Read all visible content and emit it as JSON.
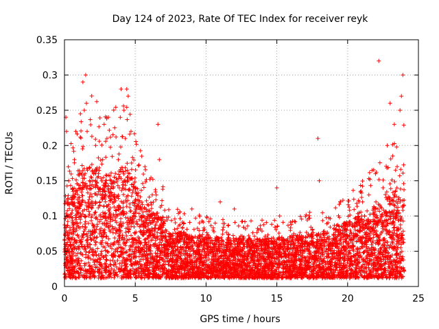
{
  "chart_data": {
    "type": "scatter",
    "title": "Day 124 of 2023, Rate Of TEC Index for receiver reyk",
    "xlabel": "GPS time / hours",
    "ylabel": "ROTI / TECUs",
    "xlim": [
      0,
      25
    ],
    "ylim": [
      0,
      0.35
    ],
    "xticks": [
      0,
      5,
      10,
      15,
      20,
      25
    ],
    "yticks": [
      0,
      0.05,
      0.1,
      0.15,
      0.2,
      0.25,
      0.3,
      0.35
    ],
    "xtick_labels": [
      "0",
      "5",
      "10",
      "15",
      "20",
      "25"
    ],
    "ytick_labels": [
      "0",
      "0.05",
      "0.1",
      "0.15",
      "0.2",
      "0.25",
      "0.3",
      "0.35"
    ],
    "grid": true,
    "marker": "+",
    "color": "#ff0000",
    "series": [
      {
        "x": [
          0.05,
          0.1,
          0.15,
          0.2,
          0.25,
          0.3,
          0.35,
          0.4,
          0.5,
          0.6,
          0.7,
          0.8,
          0.9,
          1.0,
          1.1,
          1.2,
          1.3,
          1.4,
          1.5,
          1.55,
          1.6,
          1.7,
          1.8,
          1.9,
          2.0,
          2.1,
          2.2,
          2.3,
          2.4,
          2.5,
          2.6,
          2.7,
          2.8,
          2.9,
          3.0,
          3.1,
          3.2,
          3.3,
          3.4,
          3.5,
          3.6,
          3.7,
          3.8,
          3.9,
          4.0,
          4.1,
          4.2,
          4.3,
          4.4,
          4.5,
          4.6,
          4.7,
          4.8,
          4.9,
          5.0,
          5.2,
          5.4,
          5.6,
          5.8,
          6.0,
          6.2,
          6.4,
          6.6,
          6.7,
          6.8,
          7.0,
          7.5,
          8.0,
          8.5,
          9.0,
          9.5,
          10.0,
          10.5,
          11.0,
          11.5,
          12.0,
          12.5,
          13.0,
          13.5,
          14.0,
          14.5,
          15.0,
          15.2,
          15.5,
          16.0,
          16.5,
          17.0,
          17.5,
          17.9,
          18.0,
          18.5,
          19.0,
          19.5,
          20.0,
          20.5,
          21.0,
          21.5,
          22.0,
          22.2,
          22.5,
          22.8,
          23.0,
          23.3,
          23.5,
          23.7,
          23.8,
          23.9
        ],
        "y": [
          0.06,
          0.24,
          0.22,
          0.1,
          0.07,
          0.15,
          0.05,
          0.08,
          0.12,
          0.06,
          0.18,
          0.22,
          0.09,
          0.07,
          0.14,
          0.06,
          0.29,
          0.25,
          0.3,
          0.26,
          0.22,
          0.1,
          0.06,
          0.12,
          0.15,
          0.08,
          0.2,
          0.07,
          0.16,
          0.12,
          0.06,
          0.18,
          0.23,
          0.1,
          0.21,
          0.24,
          0.08,
          0.15,
          0.06,
          0.12,
          0.05,
          0.1,
          0.18,
          0.07,
          0.28,
          0.14,
          0.25,
          0.21,
          0.28,
          0.27,
          0.16,
          0.22,
          0.09,
          0.06,
          0.12,
          0.07,
          0.05,
          0.1,
          0.06,
          0.08,
          0.13,
          0.07,
          0.23,
          0.18,
          0.05,
          0.09,
          0.06,
          0.07,
          0.05,
          0.11,
          0.04,
          0.06,
          0.08,
          0.12,
          0.04,
          0.11,
          0.05,
          0.06,
          0.03,
          0.04,
          0.05,
          0.14,
          0.1,
          0.06,
          0.04,
          0.05,
          0.03,
          0.08,
          0.21,
          0.15,
          0.05,
          0.04,
          0.12,
          0.06,
          0.07,
          0.1,
          0.13,
          0.12,
          0.32,
          0.14,
          0.2,
          0.26,
          0.23,
          0.17,
          0.25,
          0.27,
          0.3
        ]
      }
    ]
  }
}
